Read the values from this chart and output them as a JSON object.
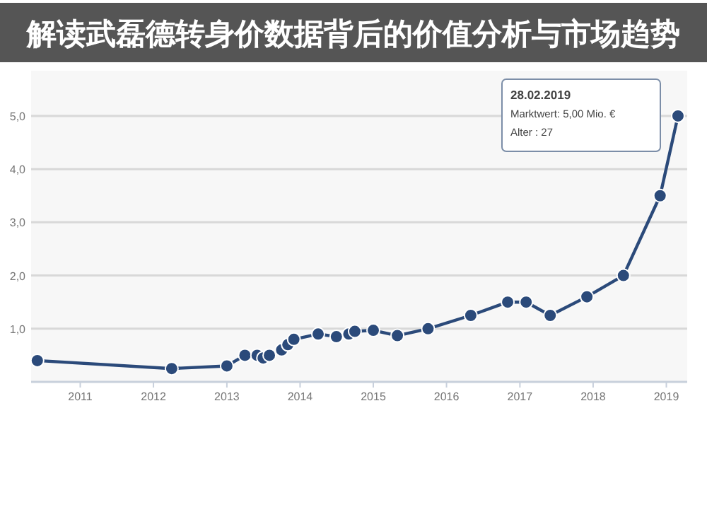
{
  "chart_data": {
    "type": "line",
    "title": "解读武磊德转身价数据背后的价值分析与市场趋势",
    "x": [
      "2010-06",
      "2012-04",
      "2013-01",
      "2013-04",
      "2013-06",
      "2013-07",
      "2013-08",
      "2013-10",
      "2013-11",
      "2013-12",
      "2014-04",
      "2014-07",
      "2014-09",
      "2014-10",
      "2015-01",
      "2015-05",
      "2015-10",
      "2016-05",
      "2016-11",
      "2017-02",
      "2017-06",
      "2017-12",
      "2018-06",
      "2018-12",
      "2019-02-28"
    ],
    "series": [
      {
        "color": "#2b4a7a",
        "values": [
          0.4,
          0.25,
          0.3,
          0.5,
          0.5,
          0.45,
          0.5,
          0.6,
          0.7,
          0.8,
          0.9,
          0.85,
          0.9,
          0.95,
          0.97,
          0.87,
          1.0,
          1.25,
          1.5,
          1.5,
          1.25,
          1.6,
          2.0,
          3.5,
          5.0
        ]
      }
    ],
    "xlim": [
      "2010-05-01",
      "2019-04-15"
    ],
    "xticks": [
      "2011",
      "2012",
      "2013",
      "2014",
      "2015",
      "2016",
      "2017",
      "2018",
      "2019"
    ],
    "ylim": [
      0,
      5.85
    ],
    "yticks": [
      {
        "value": 1,
        "label": "1,0"
      },
      {
        "value": 2,
        "label": "2,0"
      },
      {
        "value": 3,
        "label": "3,0"
      },
      {
        "value": 4,
        "label": "4,0"
      },
      {
        "value": 5,
        "label": "5,0"
      }
    ],
    "grid": "y",
    "marker": "circle",
    "line_style": "solid",
    "annotations": [
      "28.02.2019",
      "Marktwert: 5,00 Mio. €",
      "Alter : 27"
    ]
  }
}
